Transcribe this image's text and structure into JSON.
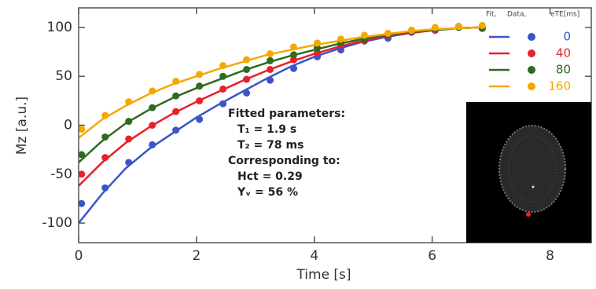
{
  "chart_data": {
    "type": "scatter",
    "x_label": "Time [s]",
    "y_label": "Mz [a.u.]",
    "xlim": [
      0,
      8.7
    ],
    "ylim": [
      -120,
      120
    ],
    "xticks": [
      0,
      2,
      4,
      6,
      8
    ],
    "yticks": [
      100,
      50,
      0,
      -50,
      -100
    ],
    "legend_header": [
      "Fit,",
      "Data,",
      "eTE[ms]"
    ],
    "legend_position": "upper right",
    "x": [
      0.05,
      0.45,
      0.85,
      1.25,
      1.65,
      2.05,
      2.45,
      2.85,
      3.25,
      3.65,
      4.05,
      4.45,
      4.85,
      5.25,
      5.65,
      6.05,
      6.45,
      6.85
    ],
    "fit_x": [
      0,
      0.4,
      0.8,
      1.2,
      1.6,
      2.0,
      2.4,
      2.8,
      3.2,
      3.6,
      4.0,
      4.4,
      4.8,
      5.2,
      5.6,
      6.0,
      6.4,
      6.8
    ],
    "series": [
      {
        "name": "0",
        "color": "#3b55c8",
        "values": [
          -80,
          -64,
          -38,
          -20,
          -5,
          6,
          22,
          33,
          46,
          58,
          70,
          77,
          86,
          89,
          95,
          97,
          101,
          99
        ],
        "fit": [
          -100,
          -70,
          -44,
          -24,
          -8,
          8,
          22,
          35,
          48,
          60,
          70,
          78,
          85,
          90,
          94,
          97,
          99,
          100
        ]
      },
      {
        "name": "40",
        "color": "#e8202a",
        "values": [
          -50,
          -33,
          -14,
          0,
          14,
          25,
          37,
          47,
          57,
          67,
          74,
          82,
          87,
          92,
          96,
          98,
          101,
          100
        ],
        "fit": [
          -62,
          -38,
          -18,
          -2,
          12,
          24,
          35,
          46,
          56,
          65,
          73,
          80,
          86,
          91,
          94,
          97,
          99,
          100
        ]
      },
      {
        "name": "80",
        "color": "#2e6b1e",
        "values": [
          -30,
          -12,
          4,
          18,
          30,
          40,
          50,
          57,
          66,
          72,
          79,
          85,
          88,
          93,
          97,
          99,
          100,
          99
        ],
        "fit": [
          -38,
          -16,
          2,
          16,
          28,
          38,
          47,
          56,
          64,
          71,
          77,
          83,
          88,
          92,
          95,
          97,
          99,
          100
        ]
      },
      {
        "name": "160",
        "color": "#f5a800",
        "values": [
          -4,
          10,
          24,
          35,
          45,
          52,
          61,
          67,
          73,
          80,
          84,
          88,
          92,
          94,
          97,
          100,
          101,
          102
        ],
        "fit": [
          -13,
          6,
          20,
          32,
          42,
          50,
          58,
          65,
          72,
          77,
          82,
          86,
          90,
          93,
          96,
          98,
          99,
          100
        ]
      }
    ],
    "annotations": [
      "Fitted parameters:",
      "T₁ = 1.9 s",
      "T₂ = 78 ms",
      "Corresponding to:",
      "Hct = 0.29",
      "Yᵥ = 56 %"
    ]
  }
}
